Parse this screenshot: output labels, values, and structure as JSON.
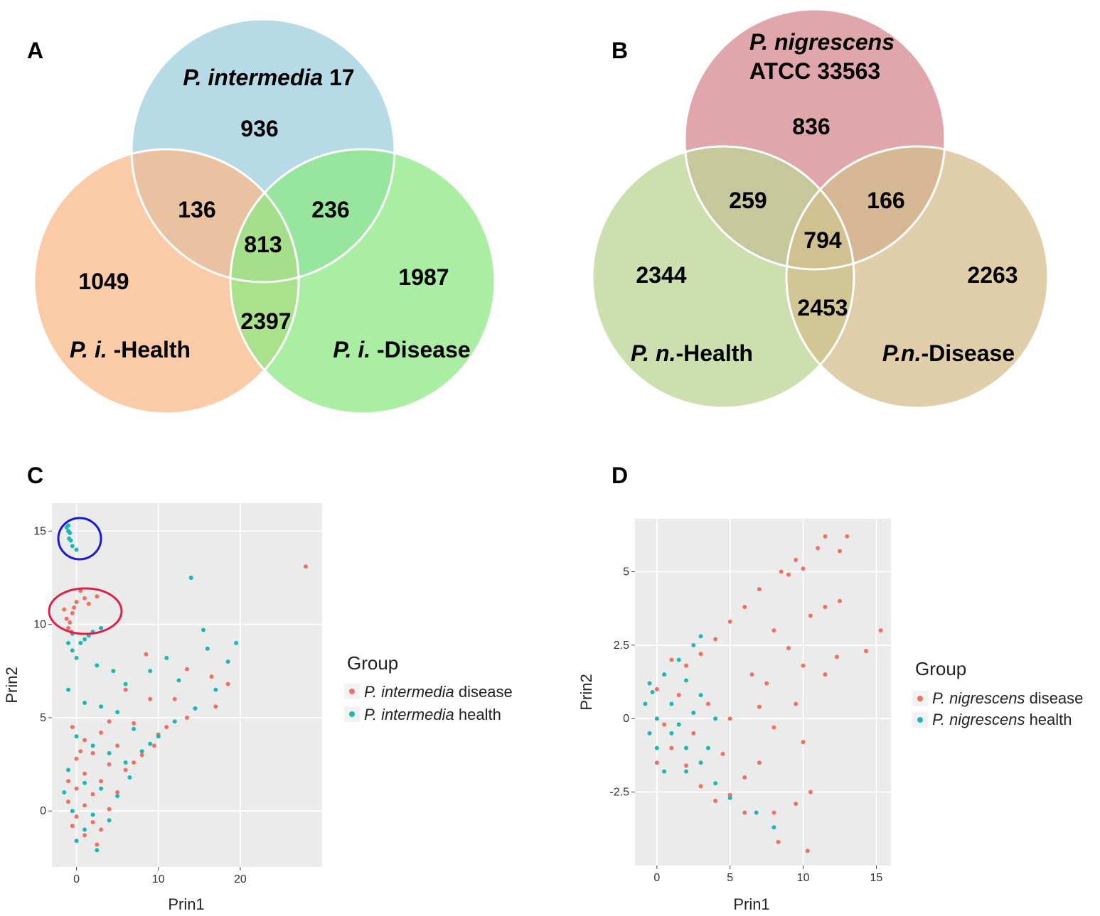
{
  "colors": {
    "pi_strain": "#9ecfdf",
    "pi_health": "#f9b989",
    "pi_disease": "#8ee884",
    "pn_strain": "#d48a8f",
    "pn_health": "#bcd394",
    "pn_disease": "#d4bd8c",
    "disease_point": "#f07064",
    "health_point": "#1ab9b5",
    "panel_bg": "#ebebeb"
  },
  "chart_data": [
    {
      "type": "venn",
      "panel_label": "A",
      "sets": [
        {
          "id": "strain",
          "name_italic": "P. intermedia",
          "name_plain": " 17"
        },
        {
          "id": "health",
          "name_italic": "P. i.",
          "name_plain": " -Health"
        },
        {
          "id": "disease",
          "name_italic": "P. i.",
          "name_plain": " -Disease"
        }
      ],
      "regions": {
        "strain_only": "936",
        "health_only": "1049",
        "disease_only": "1987",
        "strain_health": "136",
        "strain_disease": "236",
        "health_disease": "2397",
        "all": "813"
      }
    },
    {
      "type": "venn",
      "panel_label": "B",
      "sets": [
        {
          "id": "strain",
          "name_italic": "P. nigrescens",
          "name_plain": "ATCC 33563"
        },
        {
          "id": "health",
          "name_italic": "P. n.",
          "name_plain": "-Health"
        },
        {
          "id": "disease",
          "name_italic": "P.n.",
          "name_plain": "-Disease"
        }
      ],
      "regions": {
        "strain_only": "836",
        "health_only": "2344",
        "disease_only": "2263",
        "strain_health": "259",
        "strain_disease": "166",
        "health_disease": "2453",
        "all": "794"
      }
    },
    {
      "type": "scatter",
      "panel_label": "C",
      "xlabel": "Prin1",
      "ylabel": "Prin2",
      "xlim": [
        -3,
        30
      ],
      "ylim": [
        -3,
        16.5
      ],
      "xticks": [
        0,
        10,
        20
      ],
      "xtick_labels": [
        "0",
        "10",
        "20"
      ],
      "yticks": [
        0,
        5,
        10,
        15
      ],
      "ytick_labels": [
        "0",
        "5",
        "10",
        "15"
      ],
      "legend_title": "Group",
      "series": [
        {
          "name_italic": "P. intermedia",
          "name_plain": " disease",
          "color": "#f07064",
          "points": [
            [
              28,
              13.1
            ],
            [
              14,
              12.5
            ],
            [
              -0.5,
              10.6
            ],
            [
              -1.2,
              10.3
            ],
            [
              -0.8,
              10.1
            ],
            [
              -1,
              9.8
            ],
            [
              0,
              11.2
            ],
            [
              0.5,
              11.8
            ],
            [
              1,
              11.4
            ],
            [
              1.5,
              11.1
            ],
            [
              2.5,
              11.5
            ],
            [
              -0.3,
              10.9
            ],
            [
              -1.5,
              10.8
            ],
            [
              -0.6,
              9.6
            ],
            [
              8.5,
              8.4
            ],
            [
              13.5,
              7.6
            ],
            [
              16.5,
              7.2
            ],
            [
              18.5,
              6.8
            ],
            [
              12,
              6
            ],
            [
              17,
              5.6
            ],
            [
              13.5,
              5
            ],
            [
              6,
              6.5
            ],
            [
              9,
              6
            ],
            [
              4,
              4.8
            ],
            [
              -0.5,
              4.5
            ],
            [
              3,
              4.2
            ],
            [
              7,
              4.7
            ],
            [
              10,
              4.1
            ],
            [
              1,
              3.8
            ],
            [
              5,
              3.5
            ],
            [
              2,
              3.1
            ],
            [
              0,
              2.8
            ],
            [
              8,
              3
            ],
            [
              4,
              2.5
            ],
            [
              6,
              2.2
            ],
            [
              1,
              2
            ],
            [
              3,
              1.6
            ],
            [
              0,
              1.2
            ],
            [
              2,
              0.9
            ],
            [
              5,
              1
            ],
            [
              -1,
              0.5
            ],
            [
              1,
              0.3
            ],
            [
              4,
              0.1
            ],
            [
              0,
              -0.3
            ],
            [
              2,
              -0.6
            ],
            [
              3,
              -1
            ],
            [
              1,
              -1.3
            ],
            [
              -0.5,
              -0.8
            ],
            [
              2.5,
              -1.8
            ],
            [
              -1,
              1.6
            ],
            [
              0.5,
              3.2
            ],
            [
              7,
              2.6
            ],
            [
              9.5,
              3.5
            ],
            [
              11,
              4.5
            ]
          ]
        },
        {
          "name_italic": "P. intermedia",
          "name_plain": " health",
          "color": "#1ab9b5",
          "points": [
            [
              -1.2,
              15.2
            ],
            [
              -1,
              15
            ],
            [
              -0.8,
              14.9
            ],
            [
              -0.9,
              14.6
            ],
            [
              -0.7,
              14.5
            ],
            [
              -0.5,
              14.2
            ],
            [
              0,
              14
            ],
            [
              -1,
              15.3
            ],
            [
              14,
              12.5
            ],
            [
              -0.5,
              9.5
            ],
            [
              0.5,
              9
            ],
            [
              1,
              9.2
            ],
            [
              1.5,
              9.4
            ],
            [
              2,
              9.6
            ],
            [
              3,
              9.8
            ],
            [
              -0.5,
              8.6
            ],
            [
              0,
              8.2
            ],
            [
              -1,
              9
            ],
            [
              2.5,
              7.8
            ],
            [
              4.5,
              7.5
            ],
            [
              6,
              6.8
            ],
            [
              9,
              7.5
            ],
            [
              11,
              8.2
            ],
            [
              12.5,
              7
            ],
            [
              15.5,
              9.7
            ],
            [
              16,
              8.7
            ],
            [
              19.5,
              9
            ],
            [
              18.5,
              8
            ],
            [
              17,
              6.5
            ],
            [
              14.5,
              5.5
            ],
            [
              12,
              4.8
            ],
            [
              10,
              4
            ],
            [
              8,
              3.2
            ],
            [
              -1,
              6.5
            ],
            [
              1,
              5.8
            ],
            [
              3,
              5.6
            ],
            [
              5,
              5.3
            ],
            [
              7,
              4.4
            ],
            [
              0,
              4
            ],
            [
              2,
              3.5
            ],
            [
              4,
              3.1
            ],
            [
              6,
              2.6
            ],
            [
              -1,
              2.2
            ],
            [
              1,
              1.5
            ],
            [
              3,
              1.2
            ],
            [
              5,
              0.8
            ],
            [
              -0.5,
              0
            ],
            [
              2,
              -0.2
            ],
            [
              4,
              -0.5
            ],
            [
              1,
              -1
            ],
            [
              2.5,
              -2.1
            ],
            [
              -1.5,
              1
            ],
            [
              0,
              -1.6
            ],
            [
              6.5,
              1.8
            ],
            [
              9,
              3.6
            ]
          ]
        }
      ]
    },
    {
      "type": "scatter",
      "panel_label": "D",
      "xlabel": "Prin1",
      "ylabel": "Prin2",
      "xlim": [
        -1.5,
        16
      ],
      "ylim": [
        -5,
        6.8
      ],
      "xticks": [
        0,
        5,
        10,
        15
      ],
      "xtick_labels": [
        "0",
        "5",
        "10",
        "15"
      ],
      "yticks": [
        -2.5,
        0,
        2.5,
        5
      ],
      "ytick_labels": [
        "-2.5",
        "0",
        "2.5",
        "5"
      ],
      "legend_title": "Group",
      "series": [
        {
          "name_italic": "P. nigrescens",
          "name_plain": " disease",
          "color": "#f07064",
          "points": [
            [
              11.5,
              6.2
            ],
            [
              13,
              6.2
            ],
            [
              12.5,
              5.7
            ],
            [
              11,
              5.8
            ],
            [
              9.5,
              5.4
            ],
            [
              10,
              5.1
            ],
            [
              8.5,
              5
            ],
            [
              9,
              4.9
            ],
            [
              15.3,
              3
            ],
            [
              14.3,
              2.3
            ],
            [
              12.5,
              4
            ],
            [
              11.5,
              3.8
            ],
            [
              10.5,
              3.5
            ],
            [
              12.3,
              2.1
            ],
            [
              11.5,
              1.5
            ],
            [
              7,
              4.4
            ],
            [
              6,
              3.8
            ],
            [
              5,
              3.3
            ],
            [
              4,
              2.7
            ],
            [
              3,
              2.2
            ],
            [
              2,
              1.8
            ],
            [
              8,
              3
            ],
            [
              9,
              2.4
            ],
            [
              10,
              1.8
            ],
            [
              7.5,
              1.2
            ],
            [
              9.5,
              0.5
            ],
            [
              8,
              -0.3
            ],
            [
              10,
              -0.8
            ],
            [
              7,
              -1.5
            ],
            [
              6,
              -2
            ],
            [
              5,
              -2.6
            ],
            [
              4,
              -2.8
            ],
            [
              3,
              -2.3
            ],
            [
              2,
              -1.6
            ],
            [
              1,
              -1
            ],
            [
              10.5,
              -2.5
            ],
            [
              9.5,
              -2.9
            ],
            [
              8,
              -3.2
            ],
            [
              8.3,
              -4.2
            ],
            [
              10.3,
              -4.5
            ],
            [
              6,
              -3.2
            ],
            [
              3.5,
              0.5
            ],
            [
              2.5,
              -0.5
            ],
            [
              1.5,
              0.8
            ],
            [
              0.5,
              -0.2
            ],
            [
              0,
              1
            ],
            [
              0,
              -1.5
            ],
            [
              1,
              2
            ],
            [
              5,
              0
            ],
            [
              6.5,
              1.5
            ],
            [
              4.5,
              -1.2
            ],
            [
              7,
              0.4
            ]
          ]
        },
        {
          "name_italic": "P. nigrescens",
          "name_plain": " health",
          "color": "#1ab9b5",
          "points": [
            [
              6.8,
              -3.2
            ],
            [
              8,
              -3.7
            ],
            [
              5,
              -2.7
            ],
            [
              4,
              -2.2
            ],
            [
              3,
              -1.5
            ],
            [
              2,
              -1
            ],
            [
              1,
              -0.5
            ],
            [
              0,
              0
            ],
            [
              -0.5,
              1.2
            ],
            [
              0.5,
              1.5
            ],
            [
              1.5,
              2
            ],
            [
              2.5,
              2.5
            ],
            [
              3,
              2.8
            ],
            [
              2,
              1.3
            ],
            [
              3,
              0.8
            ],
            [
              4,
              0
            ],
            [
              1,
              0.5
            ],
            [
              0,
              -1
            ],
            [
              2,
              -1.8
            ],
            [
              0.5,
              -1.8
            ],
            [
              -0.5,
              -0.5
            ],
            [
              -0.8,
              0.5
            ],
            [
              1.5,
              -0.2
            ],
            [
              3.5,
              -1
            ],
            [
              2.5,
              0.2
            ],
            [
              -0.3,
              0.9
            ]
          ]
        }
      ]
    }
  ]
}
